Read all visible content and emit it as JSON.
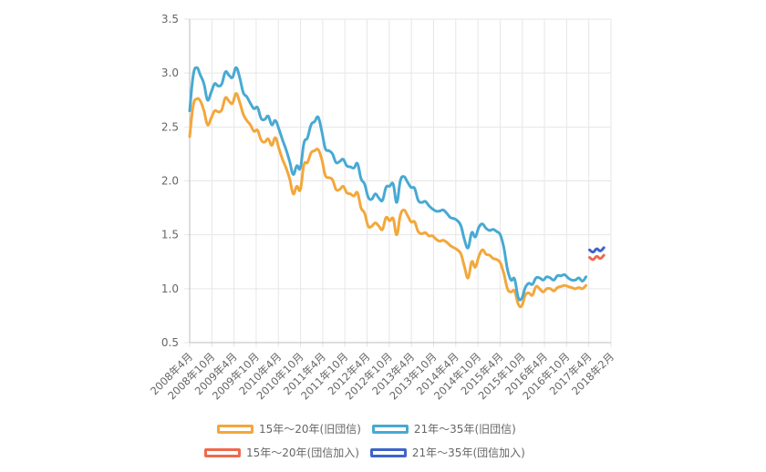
{
  "chart_data": {
    "type": "line",
    "ylim": [
      0.5,
      3.5
    ],
    "yticks": [
      "0.5",
      "1.0",
      "1.5",
      "2.0",
      "2.5",
      "3.0",
      "3.5"
    ],
    "x_tick_labels": [
      "2008年4月",
      "2008年10月",
      "2009年4月",
      "2009年10月",
      "2010年4月",
      "2010年10月",
      "2011年4月",
      "2011年10月",
      "2012年4月",
      "2012年10月",
      "2013年4月",
      "2013年10月",
      "2014年4月",
      "2014年10月",
      "2015年4月",
      "2015年10月",
      "2016年4月",
      "2016年10月",
      "2017年4月",
      "2018年2月"
    ],
    "x_range": [
      0,
      118
    ],
    "series": [
      {
        "name": "15年～20年(旧団信)",
        "color": "#f3a73b",
        "start_index": 0,
        "values": [
          2.41,
          2.7,
          2.76,
          2.74,
          2.65,
          2.52,
          2.58,
          2.65,
          2.64,
          2.66,
          2.77,
          2.74,
          2.72,
          2.81,
          2.73,
          2.62,
          2.56,
          2.52,
          2.46,
          2.47,
          2.38,
          2.36,
          2.39,
          2.33,
          2.4,
          2.3,
          2.2,
          2.12,
          2.02,
          1.88,
          1.95,
          1.92,
          2.15,
          2.17,
          2.26,
          2.28,
          2.29,
          2.2,
          2.05,
          2.03,
          2.01,
          1.92,
          1.92,
          1.95,
          1.89,
          1.88,
          1.86,
          1.89,
          1.75,
          1.7,
          1.58,
          1.58,
          1.61,
          1.58,
          1.55,
          1.66,
          1.63,
          1.65,
          1.5,
          1.68,
          1.73,
          1.68,
          1.62,
          1.62,
          1.53,
          1.51,
          1.52,
          1.49,
          1.49,
          1.46,
          1.44,
          1.45,
          1.43,
          1.4,
          1.38,
          1.36,
          1.32,
          1.2,
          1.1,
          1.25,
          1.2,
          1.3,
          1.36,
          1.32,
          1.31,
          1.28,
          1.27,
          1.24,
          1.14,
          1.0,
          0.97,
          0.98,
          0.86,
          0.84,
          0.94,
          0.96,
          0.94,
          1.02,
          1.0,
          0.97,
          1.0,
          1.0,
          0.98,
          1.01,
          1.02,
          1.03,
          1.02,
          1.01,
          1.0,
          1.01,
          1.0,
          1.03
        ]
      },
      {
        "name": "21年～35年(旧団信)",
        "color": "#48a9d3",
        "start_index": 0,
        "values": [
          2.65,
          2.98,
          3.05,
          2.98,
          2.9,
          2.75,
          2.82,
          2.9,
          2.88,
          2.9,
          3.01,
          2.98,
          2.96,
          3.05,
          2.96,
          2.82,
          2.78,
          2.72,
          2.67,
          2.68,
          2.58,
          2.57,
          2.6,
          2.52,
          2.56,
          2.48,
          2.38,
          2.29,
          2.18,
          2.06,
          2.14,
          2.12,
          2.35,
          2.4,
          2.52,
          2.55,
          2.59,
          2.46,
          2.3,
          2.28,
          2.25,
          2.17,
          2.18,
          2.2,
          2.14,
          2.13,
          2.12,
          2.16,
          2.02,
          1.97,
          1.85,
          1.83,
          1.88,
          1.84,
          1.82,
          1.94,
          1.95,
          1.97,
          1.8,
          2.0,
          2.04,
          1.99,
          1.94,
          1.93,
          1.82,
          1.8,
          1.81,
          1.77,
          1.74,
          1.72,
          1.72,
          1.73,
          1.7,
          1.66,
          1.65,
          1.63,
          1.58,
          1.45,
          1.38,
          1.52,
          1.48,
          1.57,
          1.6,
          1.56,
          1.54,
          1.55,
          1.53,
          1.5,
          1.38,
          1.18,
          1.08,
          1.09,
          0.92,
          0.91,
          1.01,
          1.05,
          1.04,
          1.1,
          1.1,
          1.08,
          1.11,
          1.1,
          1.08,
          1.12,
          1.12,
          1.13,
          1.1,
          1.08,
          1.08,
          1.1,
          1.07,
          1.11
        ]
      },
      {
        "name": "15年～20年(団信加入)",
        "color": "#ef6a4c",
        "start_index": 112,
        "values": [
          1.29,
          1.27,
          1.3,
          1.28,
          1.31
        ]
      },
      {
        "name": "21年～35年(団信加入)",
        "color": "#3d64c9",
        "start_index": 112,
        "values": [
          1.36,
          1.34,
          1.37,
          1.35,
          1.38
        ]
      }
    ]
  }
}
